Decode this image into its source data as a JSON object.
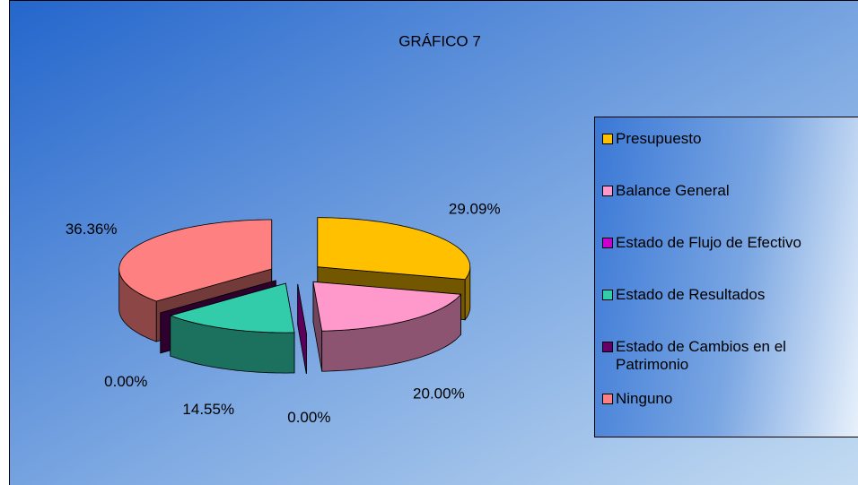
{
  "chart_data": {
    "type": "pie3d",
    "title": "GRÁFICO 7",
    "categories": [
      "Presupuesto",
      "Balance General",
      "Estado de Flujo de Efectivo",
      "Estado de Resultados",
      "Estado de Cambios en el Patrimonio",
      "Ninguno"
    ],
    "values": [
      29.09,
      20.0,
      0.0,
      14.55,
      0.0,
      36.36
    ],
    "value_labels": [
      "29.09%",
      "20.00%",
      "0.00%",
      "14.55%",
      "0.00%",
      "36.36%"
    ],
    "colors": [
      "#ffc000",
      "#ff99cc",
      "#cc00cc",
      "#33ccaa",
      "#660066",
      "#ff8080"
    ],
    "legend": "right"
  }
}
